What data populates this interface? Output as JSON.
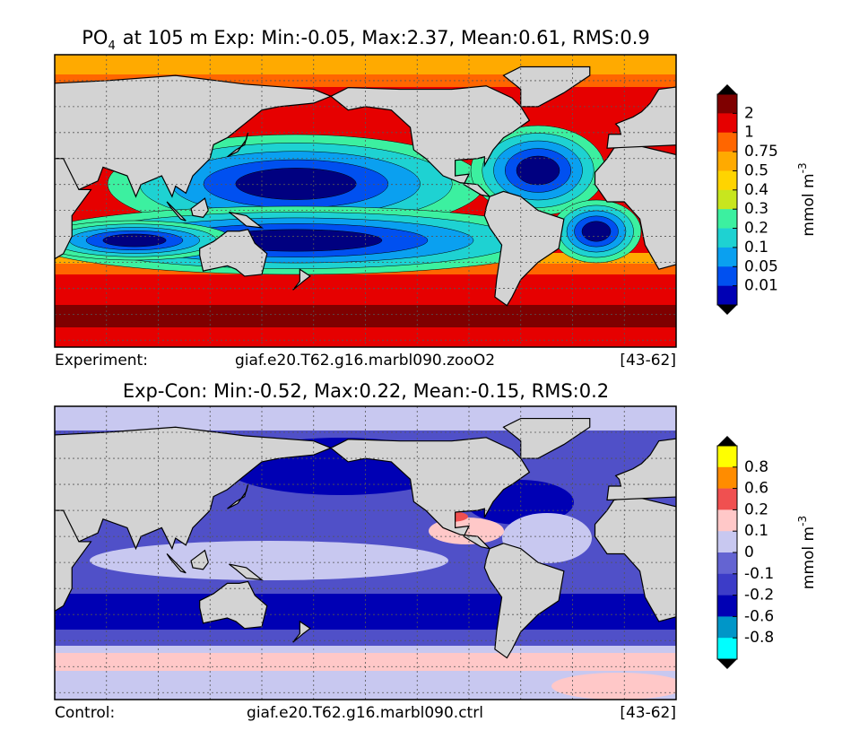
{
  "panels": [
    {
      "title": {
        "species": "PO",
        "subscript": "4",
        "text": "at 105 m Exp: Min:-0.05, Max:2.37, Mean:0.61, RMS:0.9"
      },
      "footer": {
        "label": "Experiment:",
        "case": "giaf.e20.T62.g16.marbl090.zooO2",
        "years": "[43-62]"
      },
      "colorbar": {
        "ticks": [
          "2",
          "1",
          "0.75",
          "0.5",
          "0.4",
          "0.3",
          "0.2",
          "0.1",
          "0.05",
          "0.01"
        ],
        "colors": [
          "#7f0000",
          "#e60000",
          "#ff6600",
          "#ffaa00",
          "#ffd400",
          "#c8e61e",
          "#3cf0a0",
          "#1ed2d2",
          "#0aa0f0",
          "#0050f0",
          "#0000b4"
        ],
        "units": "mmol m",
        "units_exponent": "-3"
      }
    },
    {
      "title": {
        "text": "Exp-Con: Min:-0.52, Max:0.22, Mean:-0.15, RMS:0.2"
      },
      "footer": {
        "label": "Control:",
        "case": "giaf.e20.T62.g16.marbl090.ctrl",
        "years": "[43-62]"
      },
      "colorbar": {
        "ticks": [
          "0.8",
          "0.6",
          "0.2",
          "0.1",
          "0",
          "-0.1",
          "-0.2",
          "-0.6",
          "-0.8"
        ],
        "colors": [
          "#ffff00",
          "#ff8c00",
          "#f05050",
          "#ffc8c8",
          "#c8c8f0",
          "#6464d2",
          "#3c3cc8",
          "#0000b4",
          "#0096c8",
          "#00ffff"
        ],
        "units": "mmol m",
        "units_exponent": "-3"
      }
    }
  ]
}
